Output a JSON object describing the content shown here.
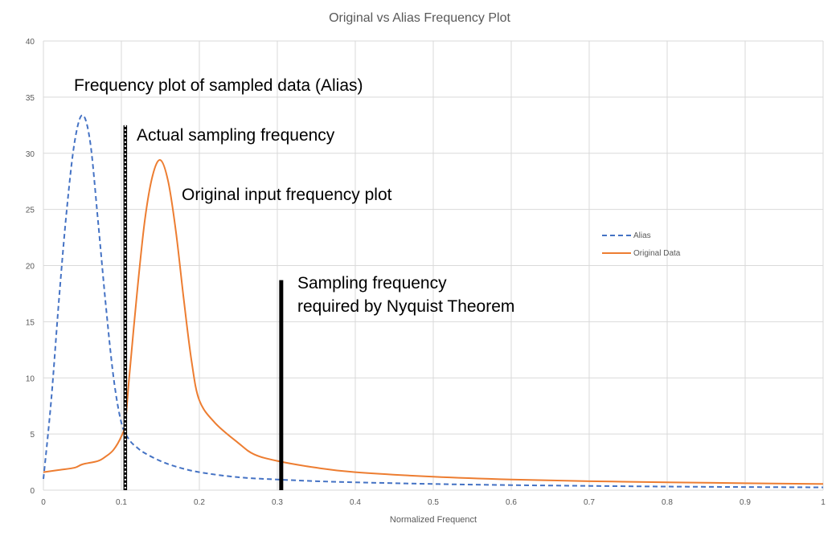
{
  "chart_data": {
    "type": "line",
    "title": "Original vs Alias Frequency Plot",
    "xlabel": "Normalized Frequenct",
    "ylabel": "",
    "xlim": [
      0,
      1
    ],
    "ylim": [
      0,
      40
    ],
    "x_ticks": [
      "0",
      "0.1",
      "0.2",
      "0.3",
      "0.4",
      "0.5",
      "0.6",
      "0.7",
      "0.8",
      "0.9",
      "1"
    ],
    "y_ticks": [
      "0",
      "5",
      "10",
      "15",
      "20",
      "25",
      "30",
      "35",
      "40"
    ],
    "grid": true,
    "legend_position": "right",
    "series": [
      {
        "name": "Alias",
        "color": "#4472c4",
        "style": "dashed",
        "x": [
          0,
          0.01,
          0.02,
          0.03,
          0.04,
          0.05,
          0.06,
          0.07,
          0.08,
          0.09,
          0.1,
          0.11,
          0.12,
          0.13,
          0.15,
          0.17,
          0.2,
          0.25,
          0.3,
          0.35,
          0.4,
          0.5,
          0.6,
          0.7,
          0.8,
          0.9,
          1.0
        ],
        "y": [
          1.0,
          8.0,
          17.0,
          25.0,
          31.0,
          33.4,
          31.0,
          24.0,
          16.5,
          10.0,
          6.0,
          4.5,
          3.8,
          3.3,
          2.6,
          2.1,
          1.6,
          1.15,
          0.95,
          0.8,
          0.7,
          0.55,
          0.45,
          0.38,
          0.32,
          0.28,
          0.25
        ]
      },
      {
        "name": "Original Data",
        "color": "#ed7d31",
        "style": "solid",
        "x": [
          0,
          0.02,
          0.04,
          0.05,
          0.07,
          0.08,
          0.09,
          0.1,
          0.105,
          0.11,
          0.12,
          0.13,
          0.14,
          0.15,
          0.16,
          0.17,
          0.18,
          0.19,
          0.2,
          0.22,
          0.25,
          0.27,
          0.3,
          0.35,
          0.4,
          0.5,
          0.6,
          0.7,
          0.8,
          0.9,
          1.0
        ],
        "y": [
          1.6,
          1.8,
          2.0,
          2.3,
          2.6,
          3.0,
          3.6,
          4.8,
          6.0,
          10.0,
          17.5,
          24.0,
          28.0,
          29.4,
          27.5,
          23.0,
          17.0,
          11.5,
          8.0,
          6.0,
          4.2,
          3.2,
          2.6,
          2.0,
          1.6,
          1.2,
          0.95,
          0.8,
          0.7,
          0.62,
          0.55
        ]
      }
    ],
    "vertical_markers": [
      {
        "name": "actual-sampling-line",
        "x": 0.105,
        "y_top": 32.5,
        "style": "dotted"
      },
      {
        "name": "nyquist-sampling-line",
        "x": 0.305,
        "y_top": 18.7,
        "style": "solid"
      }
    ],
    "annotations": [
      {
        "text": "Frequency plot of sampled data (Alias)"
      },
      {
        "text": "Actual sampling frequency"
      },
      {
        "text": "Original input frequency plot"
      },
      {
        "text": "Sampling frequency"
      },
      {
        "text": "required by Nyquist Theorem"
      }
    ]
  }
}
